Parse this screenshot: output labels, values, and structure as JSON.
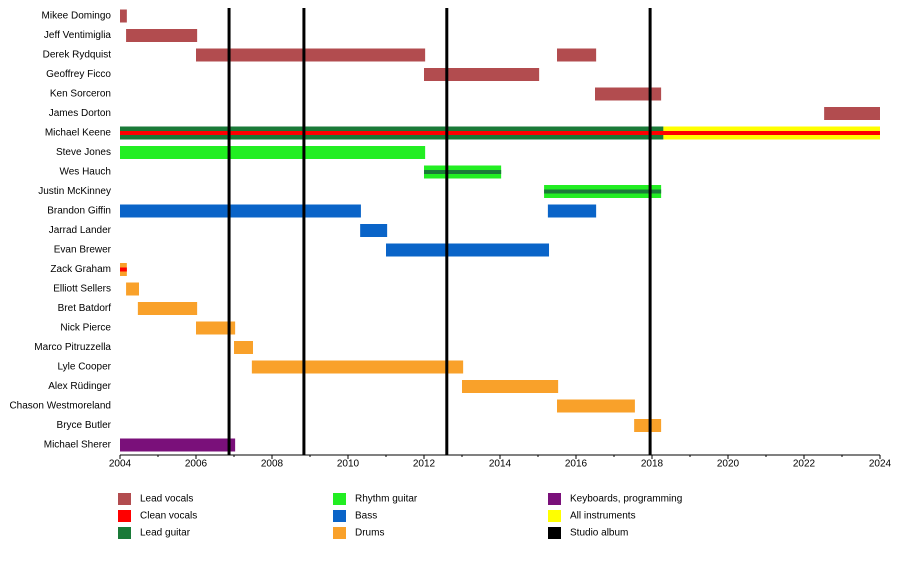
{
  "chart_data": {
    "type": "timeline",
    "categories": [
      "Mikee Domingo",
      "Jeff Ventimiglia",
      "Derek Rydquist",
      "Geoffrey Ficco",
      "Ken Sorceron",
      "James Dorton",
      "Michael Keene",
      "Steve Jones",
      "Wes Hauch",
      "Justin McKinney",
      "Brandon Giffin",
      "Jarrad Lander",
      "Evan Brewer",
      "Zack Graham",
      "Elliott Sellers",
      "Bret Batdorf",
      "Nick Pierce",
      "Marco Pitruzzella",
      "Lyle Cooper",
      "Alex Rüdinger",
      "Chason Westmoreland",
      "Bryce Butler",
      "Michael Sherer"
    ],
    "xlim": [
      2004,
      2024
    ],
    "xticks": [
      2004,
      2006,
      2008,
      2010,
      2012,
      2014,
      2016,
      2018,
      2020,
      2022,
      2024
    ],
    "series": [
      {
        "name": "Lead vocals",
        "color": "#b24c4f",
        "bars": [
          {
            "category": "Mikee Domingo",
            "start": 2004.0,
            "end": 2004.18
          },
          {
            "category": "Jeff Ventimiglia",
            "start": 2004.16,
            "end": 2006.03
          },
          {
            "category": "Derek Rydquist",
            "start": 2006.0,
            "end": 2012.03
          },
          {
            "category": "Derek Rydquist",
            "start": 2015.5,
            "end": 2016.53
          },
          {
            "category": "Geoffrey Ficco",
            "start": 2012.0,
            "end": 2015.03
          },
          {
            "category": "Ken Sorceron",
            "start": 2016.5,
            "end": 2018.24
          },
          {
            "category": "James Dorton",
            "start": 2022.53,
            "end": 2024.0
          },
          {
            "category": "Michael Keene",
            "start": 2014.0,
            "end": 2015.2,
            "stripe": true
          }
        ]
      },
      {
        "name": "Clean vocals",
        "color": "#ff0000",
        "bars": [
          {
            "category": "Michael Keene",
            "start": 2004.0,
            "end": 2024.0,
            "stripe": true
          },
          {
            "category": "Zack Graham",
            "start": 2004.0,
            "end": 2004.18,
            "stripe": true
          }
        ]
      },
      {
        "name": "Lead guitar",
        "color": "#1a7a38",
        "bars": [
          {
            "category": "Michael Keene",
            "start": 2004.0,
            "end": 2018.3
          },
          {
            "category": "Wes Hauch",
            "start": 2012.0,
            "end": 2014.03,
            "stripe": true
          },
          {
            "category": "Justin McKinney",
            "start": 2015.16,
            "end": 2018.24,
            "stripe": true
          }
        ]
      },
      {
        "name": "Rhythm guitar",
        "color": "#22ee22",
        "bars": [
          {
            "category": "Steve Jones",
            "start": 2004.0,
            "end": 2012.03
          },
          {
            "category": "Wes Hauch",
            "start": 2012.0,
            "end": 2014.03
          },
          {
            "category": "Justin McKinney",
            "start": 2015.16,
            "end": 2018.24
          }
        ]
      },
      {
        "name": "Bass",
        "color": "#0a64c8",
        "bars": [
          {
            "category": "Brandon Giffin",
            "start": 2004.0,
            "end": 2010.34
          },
          {
            "category": "Brandon Giffin",
            "start": 2015.26,
            "end": 2016.53
          },
          {
            "category": "Jarrad Lander",
            "start": 2010.32,
            "end": 2011.03
          },
          {
            "category": "Evan Brewer",
            "start": 2011.0,
            "end": 2015.29
          }
        ]
      },
      {
        "name": "Drums",
        "color": "#f9a12a",
        "bars": [
          {
            "category": "Zack Graham",
            "start": 2004.0,
            "end": 2004.18
          },
          {
            "category": "Elliott Sellers",
            "start": 2004.16,
            "end": 2004.5
          },
          {
            "category": "Bret Batdorf",
            "start": 2004.47,
            "end": 2006.03
          },
          {
            "category": "Nick Pierce",
            "start": 2006.0,
            "end": 2007.03
          },
          {
            "category": "Marco Pitruzzella",
            "start": 2007.0,
            "end": 2007.5
          },
          {
            "category": "Lyle Cooper",
            "start": 2007.47,
            "end": 2013.03
          },
          {
            "category": "Alex Rüdinger",
            "start": 2013.0,
            "end": 2015.53
          },
          {
            "category": "Chason Westmoreland",
            "start": 2015.5,
            "end": 2017.55
          },
          {
            "category": "Bryce Butler",
            "start": 2017.53,
            "end": 2018.24
          }
        ]
      },
      {
        "name": "Keyboards, programming",
        "color": "#7a107a",
        "bars": [
          {
            "category": "Michael Sherer",
            "start": 2004.0,
            "end": 2007.03
          }
        ]
      },
      {
        "name": "All instruments",
        "color": "#ffff00",
        "bars": [
          {
            "category": "Michael Keene",
            "start": 2018.3,
            "end": 2024.0
          }
        ]
      },
      {
        "name": "Studio album",
        "color": "#000000",
        "lines": [
          2006.87,
          2008.84,
          2012.6,
          2017.95
        ]
      }
    ]
  }
}
